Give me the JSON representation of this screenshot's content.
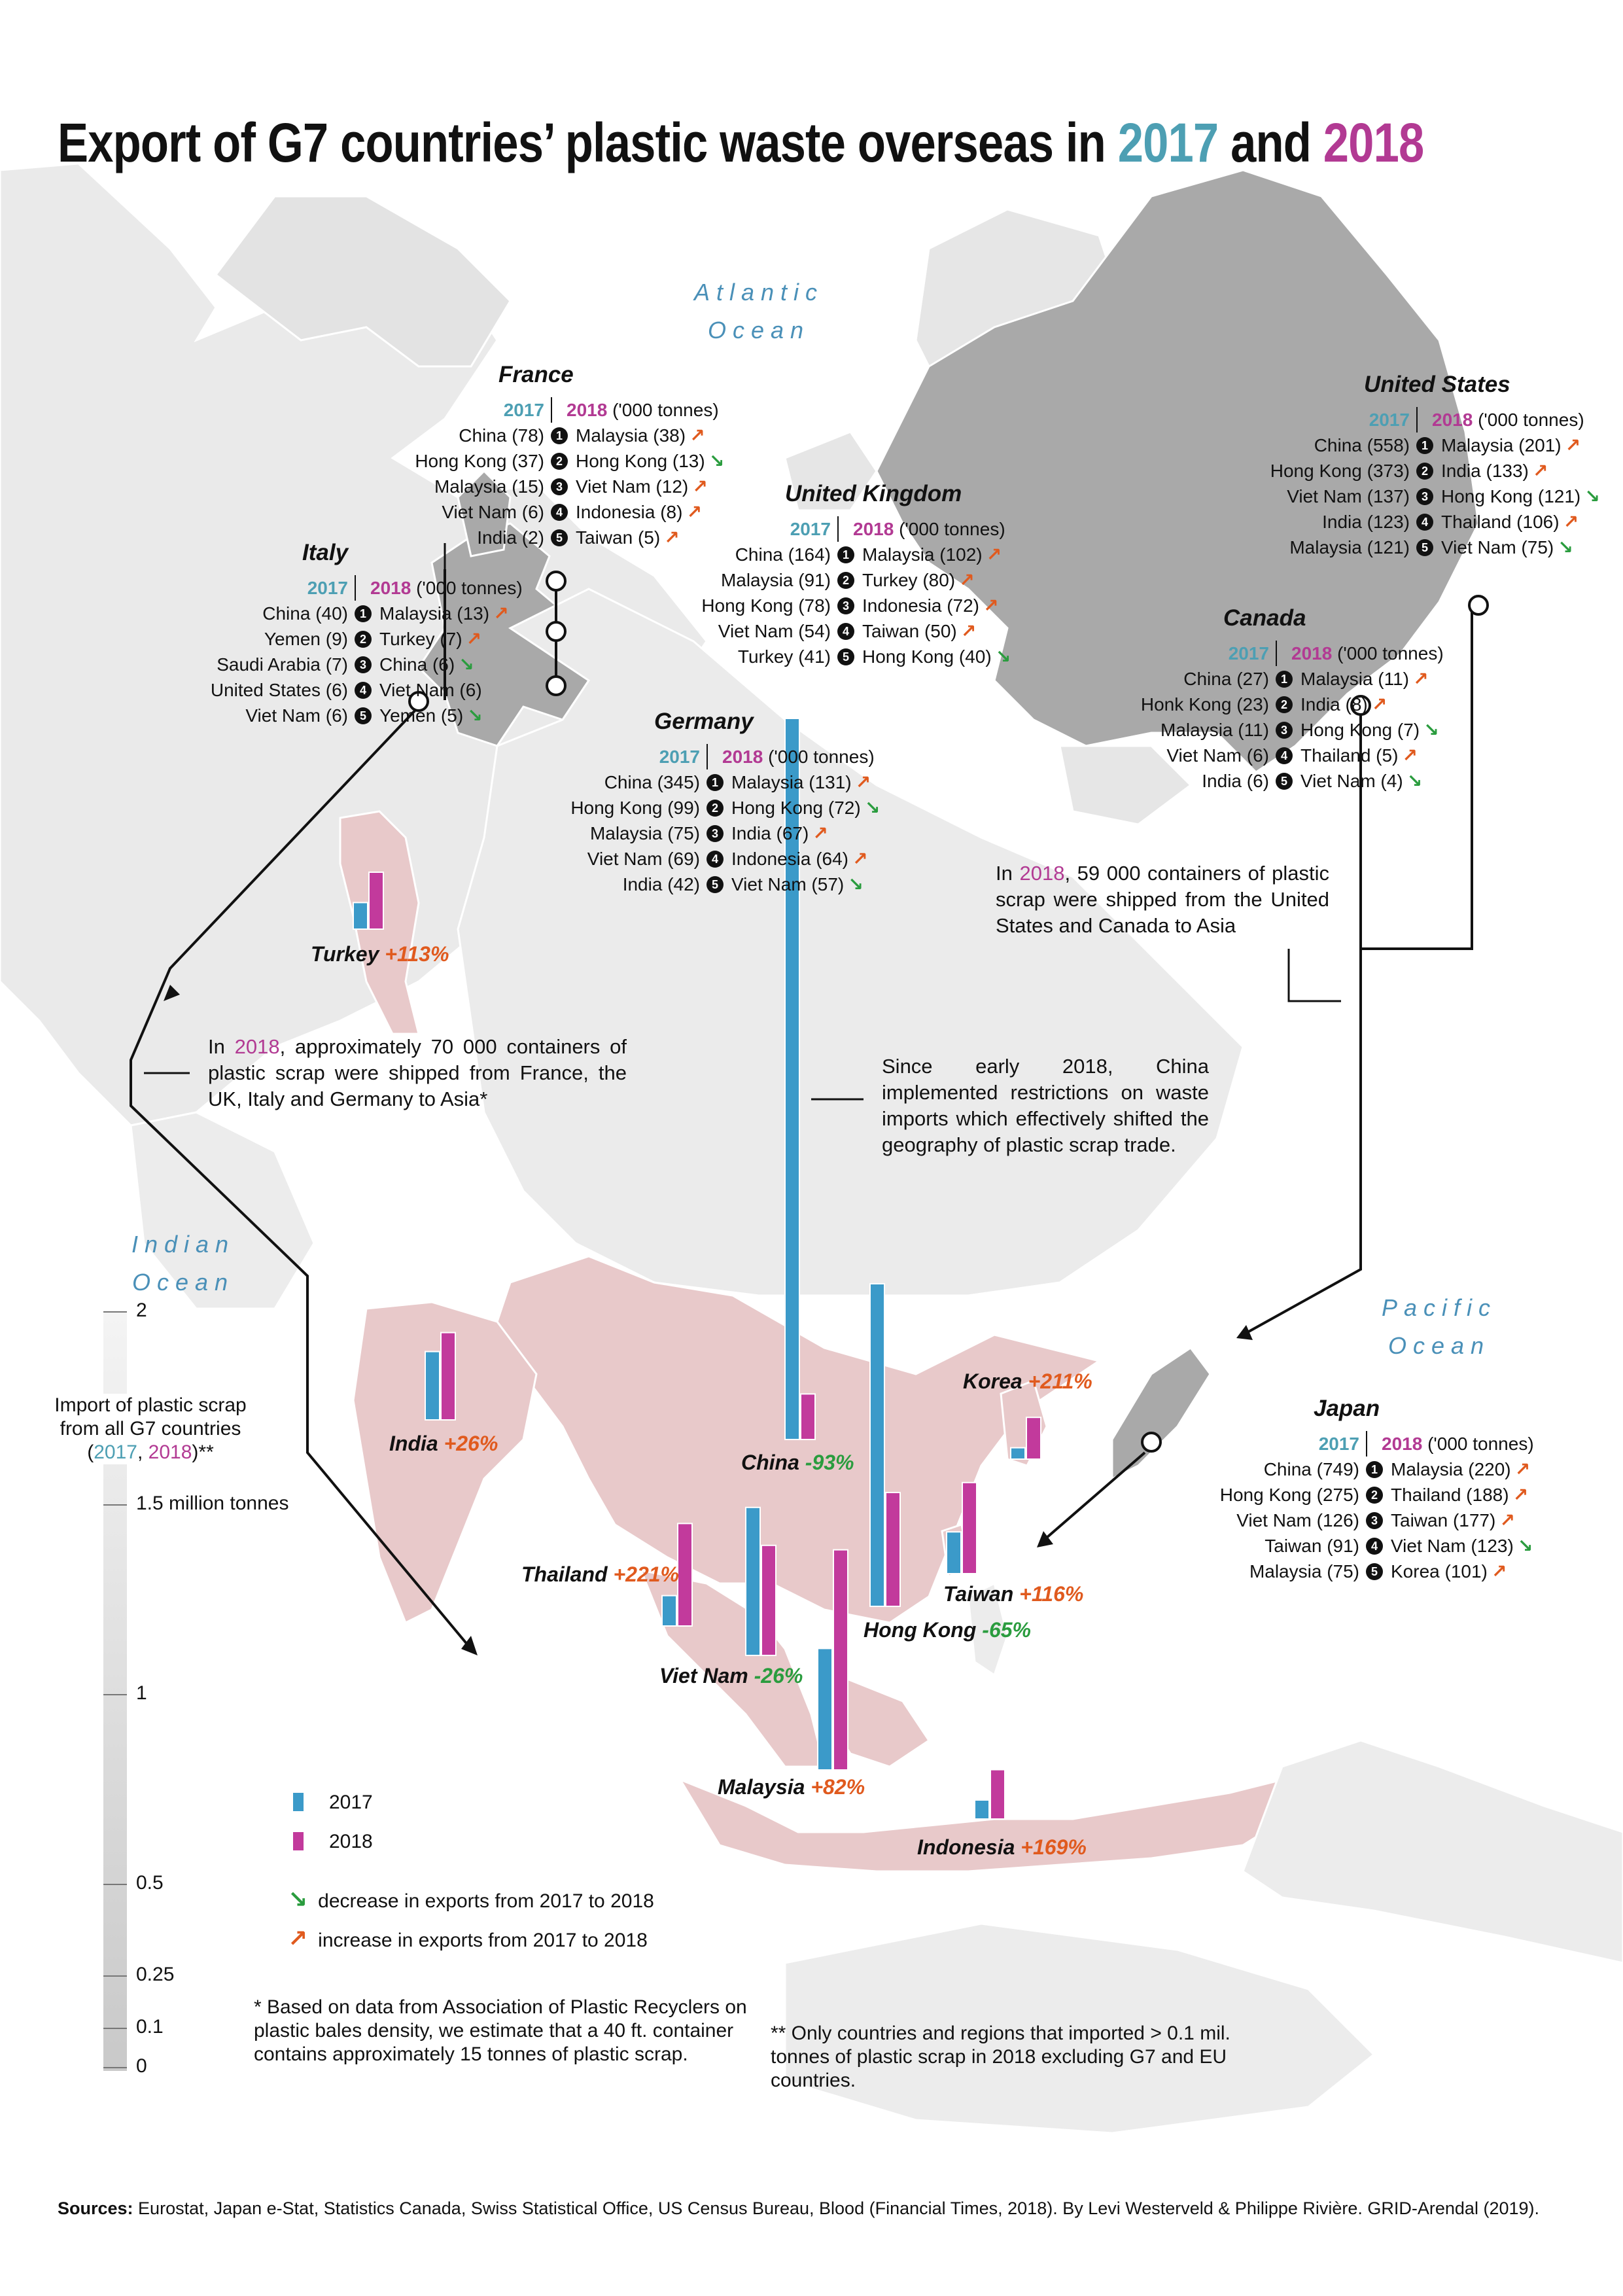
{
  "title": {
    "main": "Export of G7 countries’ plastic waste overseas in",
    "year1": "2017",
    "and": "and",
    "year2": "2018"
  },
  "oceans": {
    "atlantic": [
      "Atlantic",
      "Ocean"
    ],
    "indian": [
      "Indian",
      "Ocean"
    ],
    "pacific": [
      "Pacific",
      "Ocean"
    ]
  },
  "table_header": {
    "y2017": "2017",
    "y2018": "2018",
    "unit": "('000 tonnes)"
  },
  "exporters": [
    {
      "name": "France",
      "rows": [
        {
          "rank": "1",
          "y2017": "China (78)",
          "y2018": "Malaysia (38)",
          "trend": "up"
        },
        {
          "rank": "2",
          "y2017": "Hong Kong (37)",
          "y2018": "Hong Kong (13)",
          "trend": "down"
        },
        {
          "rank": "3",
          "y2017": "Malaysia (15)",
          "y2018": "Viet Nam (12)",
          "trend": "up"
        },
        {
          "rank": "4",
          "y2017": "Viet Nam (6)",
          "y2018": "Indonesia (8)",
          "trend": "up"
        },
        {
          "rank": "5",
          "y2017": "India (2)",
          "y2018": "Taiwan (5)",
          "trend": "up"
        }
      ]
    },
    {
      "name": "Italy",
      "rows": [
        {
          "rank": "1",
          "y2017": "China (40)",
          "y2018": "Malaysia (13)",
          "trend": "up"
        },
        {
          "rank": "2",
          "y2017": "Yemen (9)",
          "y2018": "Turkey (7)",
          "trend": "up"
        },
        {
          "rank": "3",
          "y2017": "Saudi Arabia (7)",
          "y2018": "China (6)",
          "trend": "down"
        },
        {
          "rank": "4",
          "y2017": "United States (6)",
          "y2018": "Viet Nam (6)",
          "trend": ""
        },
        {
          "rank": "5",
          "y2017": "Viet Nam (6)",
          "y2018": "Yemen (5)",
          "trend": "down"
        }
      ]
    },
    {
      "name": "United Kingdom",
      "rows": [
        {
          "rank": "1",
          "y2017": "China (164)",
          "y2018": "Malaysia (102)",
          "trend": "up"
        },
        {
          "rank": "2",
          "y2017": "Malaysia (91)",
          "y2018": "Turkey (80)",
          "trend": "up"
        },
        {
          "rank": "3",
          "y2017": "Hong Kong (78)",
          "y2018": "Indonesia (72)",
          "trend": "up"
        },
        {
          "rank": "4",
          "y2017": "Viet Nam (54)",
          "y2018": "Taiwan (50)",
          "trend": "up"
        },
        {
          "rank": "5",
          "y2017": "Turkey (41)",
          "y2018": "Hong Kong (40)",
          "trend": "down"
        }
      ]
    },
    {
      "name": "Germany",
      "rows": [
        {
          "rank": "1",
          "y2017": "China (345)",
          "y2018": "Malaysia (131)",
          "trend": "up"
        },
        {
          "rank": "2",
          "y2017": "Hong Kong (99)",
          "y2018": "Hong Kong (72)",
          "trend": "down"
        },
        {
          "rank": "3",
          "y2017": "Malaysia (75)",
          "y2018": "India (67)",
          "trend": "up"
        },
        {
          "rank": "4",
          "y2017": "Viet Nam (69)",
          "y2018": "Indonesia (64)",
          "trend": "up"
        },
        {
          "rank": "5",
          "y2017": "India (42)",
          "y2018": "Viet Nam (57)",
          "trend": "down"
        }
      ]
    },
    {
      "name": "United States",
      "rows": [
        {
          "rank": "1",
          "y2017": "China (558)",
          "y2018": "Malaysia (201)",
          "trend": "up"
        },
        {
          "rank": "2",
          "y2017": "Hong Kong (373)",
          "y2018": "India (133)",
          "trend": "up"
        },
        {
          "rank": "3",
          "y2017": "Viet Nam (137)",
          "y2018": "Hong Kong (121)",
          "trend": "down"
        },
        {
          "rank": "4",
          "y2017": "India (123)",
          "y2018": "Thailand (106)",
          "trend": "up"
        },
        {
          "rank": "5",
          "y2017": "Malaysia (121)",
          "y2018": "Viet Nam (75)",
          "trend": "down"
        }
      ]
    },
    {
      "name": "Canada",
      "rows": [
        {
          "rank": "1",
          "y2017": "China (27)",
          "y2018": "Malaysia (11)",
          "trend": "up"
        },
        {
          "rank": "2",
          "y2017": "Honk Kong (23)",
          "y2018": "India (8)",
          "trend": "up"
        },
        {
          "rank": "3",
          "y2017": "Malaysia (11)",
          "y2018": "Hong Kong (7)",
          "trend": "down"
        },
        {
          "rank": "4",
          "y2017": "Viet Nam (6)",
          "y2018": "Thailand (5)",
          "trend": "up"
        },
        {
          "rank": "5",
          "y2017": "India (6)",
          "y2018": "Viet Nam (4)",
          "trend": "down"
        }
      ]
    },
    {
      "name": "Japan",
      "rows": [
        {
          "rank": "1",
          "y2017": "China (749)",
          "y2018": "Malaysia (220)",
          "trend": "up"
        },
        {
          "rank": "2",
          "y2017": "Hong Kong (275)",
          "y2018": "Thailand (188)",
          "trend": "up"
        },
        {
          "rank": "3",
          "y2017": "Viet Nam (126)",
          "y2018": "Taiwan (177)",
          "trend": "up"
        },
        {
          "rank": "4",
          "y2017": "Taiwan (91)",
          "y2018": "Viet Nam (123)",
          "trend": "down"
        },
        {
          "rank": "5",
          "y2017": "Malaysia (75)",
          "y2018": "Korea (101)",
          "trend": "up"
        }
      ]
    }
  ],
  "chart_data": {
    "type": "bar",
    "title": "Import of plastic scrap from all G7 countries (2017, 2018)**",
    "unit": "million tonnes",
    "ylim": [
      0,
      2
    ],
    "scale_ticks": [
      "2",
      "1.5 million tonnes",
      "1",
      "0.5",
      "0.25",
      "0.1",
      "0"
    ],
    "series": [
      {
        "name": "2017",
        "color": "#3b9ac9"
      },
      {
        "name": "2018",
        "color": "#c23a9c"
      }
    ],
    "importers": [
      {
        "name": "China",
        "change": "-93%",
        "values": [
          1.9,
          0.12
        ]
      },
      {
        "name": "Hong Kong",
        "change": "-65%",
        "values": [
          0.85,
          0.3
        ]
      },
      {
        "name": "Malaysia",
        "change": "+82%",
        "values": [
          0.32,
          0.58
        ]
      },
      {
        "name": "Viet Nam",
        "change": "-26%",
        "values": [
          0.39,
          0.29
        ]
      },
      {
        "name": "Thailand",
        "change": "+221%",
        "values": [
          0.08,
          0.27
        ]
      },
      {
        "name": "India",
        "change": "+26%",
        "values": [
          0.18,
          0.23
        ]
      },
      {
        "name": "Taiwan",
        "change": "+116%",
        "values": [
          0.11,
          0.24
        ]
      },
      {
        "name": "Korea",
        "change": "+211%",
        "values": [
          0.03,
          0.11
        ]
      },
      {
        "name": "Indonesia",
        "change": "+169%",
        "values": [
          0.05,
          0.13
        ]
      },
      {
        "name": "Turkey",
        "change": "+113%",
        "values": [
          0.07,
          0.15
        ]
      }
    ]
  },
  "annotations": {
    "europe_containers": {
      "pre": "In",
      "year": "2018",
      "post": ", approximately 70 000 containers of plastic scrap were shipped from France, the UK, Italy and Germany to Asia*"
    },
    "na_containers": {
      "pre": "In",
      "year": "2018",
      "post": ", 59 000 containers of plastic scrap were shipped from the United States and Canada to Asia"
    },
    "china_note": "Since early 2018, China implemented restrictions on waste imports which effectively shifted the geography of plastic scrap trade."
  },
  "scale_legend": {
    "l1": "Import of plastic scrap",
    "l2": "from all G7 countries",
    "paren_open": "(",
    "y2017": "2017",
    "comma": ", ",
    "y2018": "2018",
    "paren_close": ")**"
  },
  "legend": {
    "y2017": "2017",
    "y2018": "2018",
    "decrease": "decrease in exports from 2017 to 2018",
    "increase": "increase in exports from 2017 to 2018",
    "colors": {
      "up": "#e05a1e",
      "down": "#2a9c3e",
      "y2017": "#3b9ac9",
      "y2018": "#c23a9c"
    }
  },
  "footnotes": {
    "star": "* Based on data from Association of Plastic Recyclers on plastic bales density, we estimate that a 40 ft. container contains approximately 15 tonnes of plastic scrap.",
    "double_star": "** Only countries and regions that imported > 0.1 mil. tonnes of plastic scrap in 2018 excluding G7 and EU countries."
  },
  "sources": {
    "label": "Sources:",
    "text": " Eurostat, Japan e-Stat, Statistics Canada, Swiss Statistical Office, US Census Bureau, Blood (Financial Times, 2018). By Levi Westerveld & Philippe Rivière. GRID-Arendal (2019)."
  }
}
